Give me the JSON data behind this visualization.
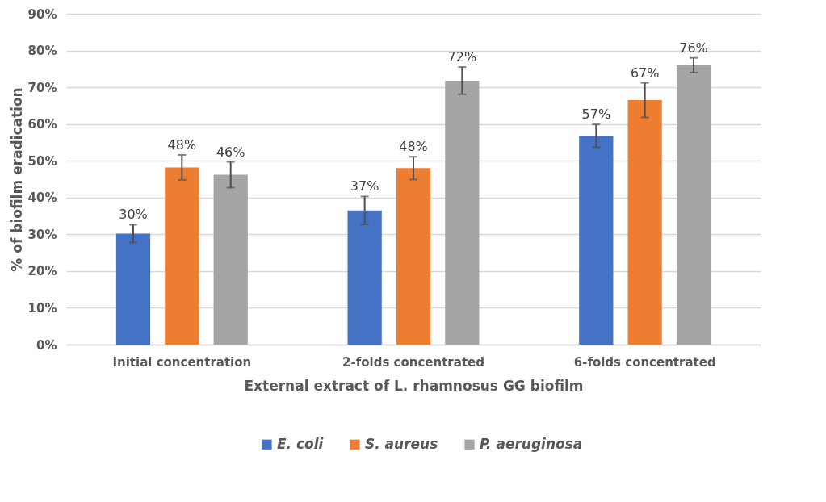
{
  "chart_data": {
    "type": "bar",
    "xlabel": "External extract of L. rhamnosus GG biofilm",
    "ylabel": "% of biofilm eradication",
    "categories": [
      "Initial concentration",
      "2-folds concentrated",
      "6-folds concentrated"
    ],
    "series": [
      {
        "name": "E. coli",
        "color": "#4472c4",
        "values": [
          30.2,
          36.5,
          56.8
        ],
        "errors": [
          2.4,
          3.8,
          3.1
        ],
        "value_labels": [
          "30%",
          "37%",
          "57%"
        ]
      },
      {
        "name": "S. aureus",
        "color": "#ed7d31",
        "values": [
          48.2,
          48.0,
          66.5
        ],
        "errors": [
          3.4,
          3.1,
          4.7
        ],
        "value_labels": [
          "48%",
          "48%",
          "67%"
        ]
      },
      {
        "name": "P. aeruginosa",
        "color": "#a5a5a5",
        "values": [
          46.2,
          71.8,
          76.0
        ],
        "errors": [
          3.5,
          3.7,
          2.0
        ],
        "value_labels": [
          "46%",
          "72%",
          "76%"
        ]
      }
    ],
    "ylim": [
      0,
      90
    ],
    "yticks": [
      {
        "value": 0,
        "label": "0%"
      },
      {
        "value": 10,
        "label": "10%"
      },
      {
        "value": 20,
        "label": "20%"
      },
      {
        "value": 30,
        "label": "30%"
      },
      {
        "value": 40,
        "label": "40%"
      },
      {
        "value": 50,
        "label": "50%"
      },
      {
        "value": 60,
        "label": "60%"
      },
      {
        "value": 70,
        "label": "70%"
      },
      {
        "value": 80,
        "label": "80%"
      },
      {
        "value": 90,
        "label": "90%"
      }
    ],
    "grid": "y",
    "legend": "bottom"
  }
}
